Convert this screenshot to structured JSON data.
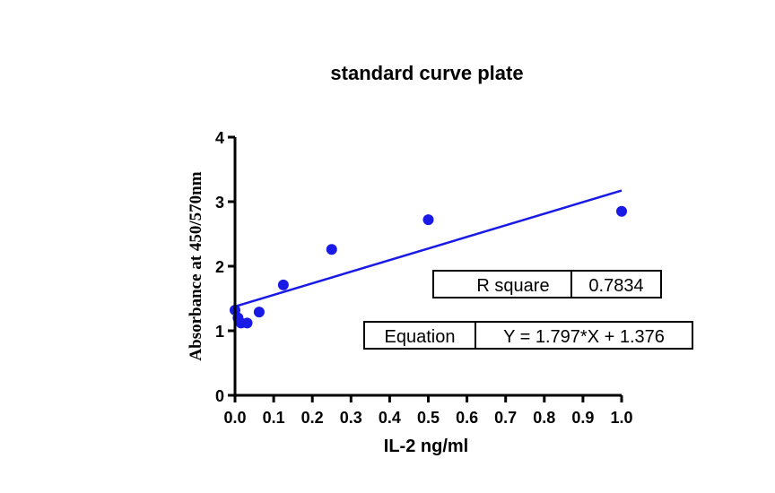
{
  "chart_data": {
    "type": "scatter",
    "title": "standard curve plate",
    "xlabel": "IL-2  ng/ml",
    "ylabel": "Absorbance at 450/570nm",
    "xlim": [
      0,
      1.0
    ],
    "ylim": [
      0,
      4
    ],
    "x_ticks": [
      "0.0",
      "0.1",
      "0.2",
      "0.3",
      "0.4",
      "0.5",
      "0.6",
      "0.7",
      "0.8",
      "0.9",
      "1.0"
    ],
    "y_ticks": [
      "0",
      "1",
      "2",
      "3",
      "4"
    ],
    "x_tick_values": [
      0,
      0.1,
      0.2,
      0.3,
      0.4,
      0.5,
      0.6,
      0.7,
      0.8,
      0.9,
      1.0
    ],
    "y_tick_values": [
      0,
      1,
      2,
      3,
      4
    ],
    "grid": false,
    "legend": "none",
    "point_color": "#1a1ae6",
    "series": [
      {
        "x": [
          0,
          0.0078,
          0.0156,
          0.0313,
          0.0625,
          0.125,
          0.25,
          0.5,
          1.0
        ],
        "y": [
          1.32,
          1.2,
          1.12,
          1.12,
          1.29,
          1.71,
          2.26,
          2.72,
          2.85
        ]
      }
    ],
    "fit": {
      "slope": 1.797,
      "intercept": 1.376,
      "x_range": [
        0,
        1.0
      ],
      "color": "#1a1ae6"
    },
    "annotations": {
      "rsq_label": "R square",
      "rsq_value": "0.7834",
      "eq_label": "Equation",
      "eq_value": "Y = 1.797*X + 1.376"
    }
  }
}
